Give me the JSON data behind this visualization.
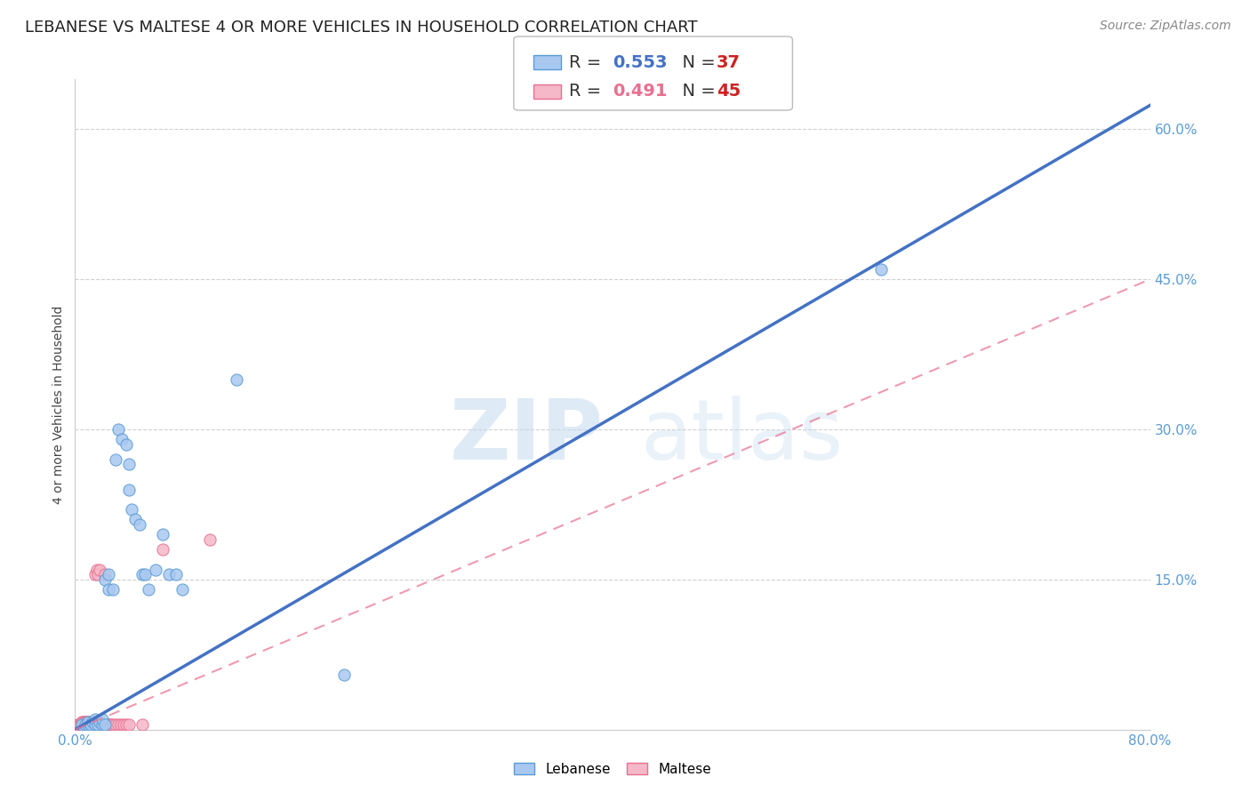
{
  "title": "LEBANESE VS MALTESE 4 OR MORE VEHICLES IN HOUSEHOLD CORRELATION CHART",
  "source": "Source: ZipAtlas.com",
  "ylabel": "4 or more Vehicles in Household",
  "watermark_zip": "ZIP",
  "watermark_atlas": "atlas",
  "xlim": [
    0.0,
    0.8
  ],
  "ylim": [
    0.0,
    0.65
  ],
  "xticks": [
    0.0,
    0.1,
    0.2,
    0.3,
    0.4,
    0.5,
    0.6,
    0.7,
    0.8
  ],
  "xticklabels": [
    "0.0%",
    "",
    "",
    "",
    "",
    "",
    "",
    "",
    "80.0%"
  ],
  "ytick_positions": [
    0.15,
    0.3,
    0.45,
    0.6
  ],
  "ytick_labels": [
    "15.0%",
    "30.0%",
    "45.0%",
    "60.0%"
  ],
  "lebanese_color": "#a8c8f0",
  "maltese_color": "#f5b8c8",
  "lebanese_edge": "#5b9bd5",
  "maltese_edge": "#e87090",
  "lebanese_line_color": "#4472c4",
  "maltese_line_color": "#e87090",
  "tick_color": "#5b9bd5",
  "grid_color": "#d0d0d0",
  "background_color": "#ffffff",
  "title_fontsize": 13,
  "axis_label_fontsize": 10,
  "tick_fontsize": 11,
  "source_fontsize": 10,
  "legend_fontsize": 14,
  "lebanese_R": "0.553",
  "lebanese_N": "37",
  "maltese_R": "0.491",
  "maltese_N": "45",
  "R_color": "#333333",
  "R_val_leb_color": "#4472c4",
  "N_color": "#333333",
  "N_val_color": "#cc2222",
  "leb_line_intercept": 0.0,
  "leb_line_slope": 0.78,
  "mal_line_intercept": 0.0,
  "mal_line_slope": 0.5625,
  "lebanese_x": [
    0.005,
    0.008,
    0.01,
    0.01,
    0.012,
    0.013,
    0.015,
    0.015,
    0.017,
    0.018,
    0.02,
    0.02,
    0.022,
    0.022,
    0.025,
    0.025,
    0.028,
    0.03,
    0.032,
    0.035,
    0.038,
    0.04,
    0.04,
    0.042,
    0.045,
    0.048,
    0.05,
    0.052,
    0.055,
    0.06,
    0.065,
    0.07,
    0.075,
    0.08,
    0.12,
    0.6,
    0.2
  ],
  "lebanese_y": [
    0.005,
    0.005,
    0.005,
    0.008,
    0.005,
    0.008,
    0.005,
    0.01,
    0.005,
    0.008,
    0.005,
    0.01,
    0.005,
    0.15,
    0.14,
    0.155,
    0.14,
    0.27,
    0.3,
    0.29,
    0.285,
    0.24,
    0.265,
    0.22,
    0.21,
    0.205,
    0.155,
    0.155,
    0.14,
    0.16,
    0.195,
    0.155,
    0.155,
    0.14,
    0.35,
    0.46,
    0.055
  ],
  "maltese_x": [
    0.002,
    0.003,
    0.004,
    0.005,
    0.005,
    0.006,
    0.006,
    0.007,
    0.007,
    0.008,
    0.008,
    0.009,
    0.009,
    0.01,
    0.01,
    0.011,
    0.012,
    0.012,
    0.013,
    0.014,
    0.015,
    0.016,
    0.016,
    0.017,
    0.018,
    0.018,
    0.019,
    0.02,
    0.021,
    0.022,
    0.023,
    0.024,
    0.025,
    0.026,
    0.027,
    0.028,
    0.03,
    0.032,
    0.034,
    0.036,
    0.038,
    0.04,
    0.05,
    0.065,
    0.1
  ],
  "maltese_y": [
    0.005,
    0.005,
    0.005,
    0.005,
    0.008,
    0.005,
    0.008,
    0.005,
    0.008,
    0.005,
    0.008,
    0.005,
    0.008,
    0.005,
    0.008,
    0.005,
    0.005,
    0.008,
    0.005,
    0.005,
    0.155,
    0.16,
    0.005,
    0.155,
    0.16,
    0.005,
    0.005,
    0.005,
    0.005,
    0.155,
    0.005,
    0.005,
    0.005,
    0.005,
    0.005,
    0.005,
    0.005,
    0.005,
    0.005,
    0.005,
    0.005,
    0.005,
    0.005,
    0.18,
    0.19
  ]
}
